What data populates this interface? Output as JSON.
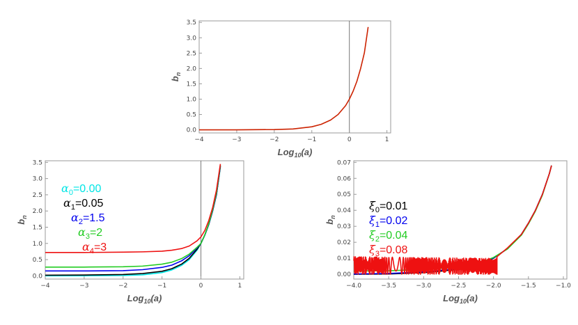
{
  "chart_data": [
    {
      "id": "top",
      "type": "line",
      "xlabel": {
        "base": "Log",
        "sub": "10",
        "rest": "(a)"
      },
      "ylabel": {
        "base": "b",
        "sub": "n"
      },
      "xlim": [
        -4,
        1.1
      ],
      "ylim": [
        -0.1,
        3.55
      ],
      "xticks": [
        -4,
        -3,
        -2,
        -1,
        0,
        1
      ],
      "xtick_labels": [
        "−4",
        "−3",
        "−2",
        "−1",
        "0",
        "1"
      ],
      "yticks": [
        0,
        0.5,
        1,
        1.5,
        2,
        2.5,
        3,
        3.5
      ],
      "ytick_labels": [
        "0.0",
        "0.5",
        "1.0",
        "1.5",
        "2.0",
        "2.5",
        "3.0",
        "3.5"
      ],
      "vline_x": 0,
      "series": [
        {
          "color": "#cc2200",
          "x": [
            -4,
            -3,
            -2,
            -1.5,
            -1,
            -0.75,
            -0.5,
            -0.3,
            -0.1,
            0,
            0.1,
            0.2,
            0.3,
            0.4,
            0.5
          ],
          "y": [
            0.0,
            0.001,
            0.01,
            0.03,
            0.1,
            0.18,
            0.32,
            0.5,
            0.79,
            1.0,
            1.26,
            1.58,
            2.0,
            2.51,
            3.35
          ]
        }
      ]
    },
    {
      "id": "bottom-left",
      "type": "line",
      "xlabel": {
        "base": "Log",
        "sub": "10",
        "rest": "(a)"
      },
      "ylabel": {
        "base": "b",
        "sub": "n"
      },
      "xlim": [
        -4,
        1.1
      ],
      "ylim": [
        -0.1,
        3.55
      ],
      "xticks": [
        -4,
        -3,
        -2,
        -1,
        0,
        1
      ],
      "xtick_labels": [
        "−4",
        "−3",
        "−2",
        "−1",
        "0",
        "1"
      ],
      "yticks": [
        0,
        0.5,
        1,
        1.5,
        2,
        2.5,
        3,
        3.5
      ],
      "ytick_labels": [
        "0.0",
        "0.5",
        "1.0",
        "1.5",
        "2.0",
        "2.5",
        "3.0",
        "3.5"
      ],
      "vline_x": 0,
      "legend": [
        {
          "sym": "α",
          "sub": "0",
          "value": "=0.00",
          "color": "#00e5e5"
        },
        {
          "sym": "α",
          "sub": "1",
          "value": "=0.05",
          "color": "#000000"
        },
        {
          "sym": "α",
          "sub": "2",
          "value": "=1.5",
          "color": "#0000ee"
        },
        {
          "sym": "α",
          "sub": "3",
          "value": "=2",
          "color": "#22cc22"
        },
        {
          "sym": "α",
          "sub": "4",
          "value": "=3",
          "color": "#ee1111"
        }
      ],
      "series": [
        {
          "color": "#00e5e5",
          "x": [
            -4,
            -3,
            -2,
            -1.5,
            -1,
            -0.75,
            -0.5,
            -0.3,
            -0.1,
            0,
            0.1,
            0.2,
            0.3,
            0.4,
            0.5
          ],
          "y": [
            0.0,
            0.001,
            0.01,
            0.03,
            0.1,
            0.18,
            0.32,
            0.5,
            0.79,
            1.0,
            1.26,
            1.58,
            2.0,
            2.51,
            3.35
          ]
        },
        {
          "color": "#000000",
          "x": [
            -4,
            -3,
            -2,
            -1.5,
            -1,
            -0.75,
            -0.5,
            -0.3,
            -0.1,
            0,
            0.1,
            0.2,
            0.3,
            0.4,
            0.5
          ],
          "y": [
            0.02,
            0.025,
            0.04,
            0.07,
            0.14,
            0.22,
            0.36,
            0.54,
            0.82,
            1.0,
            1.26,
            1.58,
            2.0,
            2.51,
            3.38
          ]
        },
        {
          "color": "#0000ee",
          "x": [
            -4,
            -3,
            -2,
            -1.5,
            -1,
            -0.75,
            -0.5,
            -0.3,
            -0.1,
            0,
            0.1,
            0.2,
            0.3,
            0.4,
            0.5
          ],
          "y": [
            0.15,
            0.15,
            0.16,
            0.19,
            0.26,
            0.33,
            0.46,
            0.62,
            0.86,
            1.0,
            1.26,
            1.58,
            2.0,
            2.52,
            3.4
          ]
        },
        {
          "color": "#22cc22",
          "x": [
            -4,
            -3,
            -2,
            -1.5,
            -1,
            -0.75,
            -0.5,
            -0.3,
            -0.1,
            0,
            0.1,
            0.2,
            0.3,
            0.4,
            0.5
          ],
          "y": [
            0.27,
            0.27,
            0.28,
            0.3,
            0.36,
            0.42,
            0.53,
            0.67,
            0.88,
            1.0,
            1.27,
            1.6,
            2.03,
            2.56,
            3.42
          ]
        },
        {
          "color": "#ee1111",
          "x": [
            -4,
            -3,
            -2,
            -1.5,
            -1,
            -0.75,
            -0.5,
            -0.3,
            -0.1,
            0,
            0.1,
            0.2,
            0.3,
            0.4,
            0.5
          ],
          "y": [
            0.72,
            0.72,
            0.73,
            0.74,
            0.76,
            0.79,
            0.84,
            0.92,
            1.08,
            1.2,
            1.4,
            1.7,
            2.1,
            2.65,
            3.45
          ]
        }
      ]
    },
    {
      "id": "bottom-right",
      "type": "line",
      "xlabel": {
        "base": "Log",
        "sub": "10",
        "rest": "(a)"
      },
      "ylabel": {
        "base": "b",
        "sub": "n"
      },
      "xlim": [
        -4.0,
        -0.95
      ],
      "ylim": [
        -0.003,
        0.071
      ],
      "xticks": [
        -4.0,
        -3.5,
        -3.0,
        -2.5,
        -2.0,
        -1.5,
        -1.0
      ],
      "xtick_labels": [
        "−4.0",
        "−3.5",
        "−3.0",
        "−2.5",
        "−2.0",
        "−1.5",
        "−1.0"
      ],
      "yticks": [
        0,
        0.01,
        0.02,
        0.03,
        0.04,
        0.05,
        0.06,
        0.07
      ],
      "ytick_labels": [
        "0.00",
        "0.01",
        "0.02",
        "0.03",
        "0.04",
        "0.05",
        "0.06",
        "0.07"
      ],
      "legend": [
        {
          "sym": "ξ",
          "sub": "0",
          "value": "=0.01",
          "color": "#000000"
        },
        {
          "sym": "ξ",
          "sub": "1",
          "value": "=0.02",
          "color": "#0000ee"
        },
        {
          "sym": "ξ",
          "sub": "2",
          "value": "=0.04",
          "color": "#22cc22"
        },
        {
          "sym": "ξ",
          "sub": "3",
          "value": "=0.08",
          "color": "#ee1111"
        }
      ],
      "series": [
        {
          "color": "#000000",
          "x": [
            -4.0,
            -3.5,
            -3.0,
            -2.5,
            -2.2,
            -2.0,
            -1.8,
            -1.6,
            -1.5,
            -1.4,
            -1.3,
            -1.2,
            -1.17
          ],
          "y": [
            0.0,
            0.0002,
            0.001,
            0.003,
            0.006,
            0.01,
            0.016,
            0.025,
            0.032,
            0.04,
            0.05,
            0.063,
            0.068
          ]
        },
        {
          "color": "#0000ee",
          "x": [
            -4.0,
            -3.5,
            -3.0,
            -2.5,
            -2.2,
            -2.0,
            -1.8,
            -1.6,
            -1.5,
            -1.4,
            -1.3,
            -1.2,
            -1.17
          ],
          "y": [
            0.0002,
            0.0005,
            0.0015,
            0.0035,
            0.0065,
            0.0102,
            0.016,
            0.025,
            0.032,
            0.04,
            0.05,
            0.063,
            0.068
          ]
        },
        {
          "color": "#22cc22",
          "x": [
            -4.0,
            -3.5,
            -3.0,
            -2.5,
            -2.2,
            -2.0,
            -1.8,
            -1.6,
            -1.5,
            -1.4,
            -1.3,
            -1.2,
            -1.17
          ],
          "y": [
            0.002,
            0.0022,
            0.003,
            0.0045,
            0.007,
            0.0105,
            0.0158,
            0.0245,
            0.0315,
            0.0395,
            0.0495,
            0.063,
            0.068
          ]
        },
        {
          "color": "#ee1111",
          "oscillating": true,
          "osc_start": -4.0,
          "osc_end": -1.95,
          "osc_amplitude": 0.011,
          "x": [
            -1.95,
            -1.8,
            -1.6,
            -1.5,
            -1.4,
            -1.3,
            -1.2,
            -1.17
          ],
          "y": [
            0.011,
            0.0165,
            0.025,
            0.032,
            0.04,
            0.05,
            0.063,
            0.068
          ]
        }
      ]
    }
  ]
}
